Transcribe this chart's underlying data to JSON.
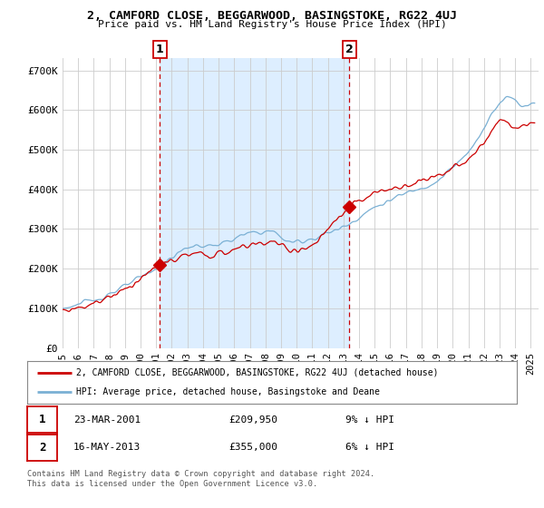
{
  "title": "2, CAMFORD CLOSE, BEGGARWOOD, BASINGSTOKE, RG22 4UJ",
  "subtitle": "Price paid vs. HM Land Registry's House Price Index (HPI)",
  "ylabel_ticks": [
    "£0",
    "£100K",
    "£200K",
    "£300K",
    "£400K",
    "£500K",
    "£600K",
    "£700K"
  ],
  "ytick_values": [
    0,
    100000,
    200000,
    300000,
    400000,
    500000,
    600000,
    700000
  ],
  "ylim": [
    0,
    730000
  ],
  "xlim_start": 1995.0,
  "xlim_end": 2025.5,
  "marker1_x": 2001.22,
  "marker1_y": 209950,
  "marker1_label": "1",
  "marker1_date": "23-MAR-2001",
  "marker1_price": "£209,950",
  "marker1_hpi": "9% ↓ HPI",
  "marker2_x": 2013.37,
  "marker2_y": 355000,
  "marker2_label": "2",
  "marker2_date": "16-MAY-2013",
  "marker2_price": "£355,000",
  "marker2_hpi": "6% ↓ HPI",
  "legend_line1": "2, CAMFORD CLOSE, BEGGARWOOD, BASINGSTOKE, RG22 4UJ (detached house)",
  "legend_line2": "HPI: Average price, detached house, Basingstoke and Deane",
  "footer1": "Contains HM Land Registry data © Crown copyright and database right 2024.",
  "footer2": "This data is licensed under the Open Government Licence v3.0.",
  "red_color": "#cc0000",
  "blue_color": "#7ab0d4",
  "fill_color": "#ddeeff",
  "background_color": "#ffffff",
  "grid_color": "#cccccc",
  "dashed_line_color": "#cc0000"
}
